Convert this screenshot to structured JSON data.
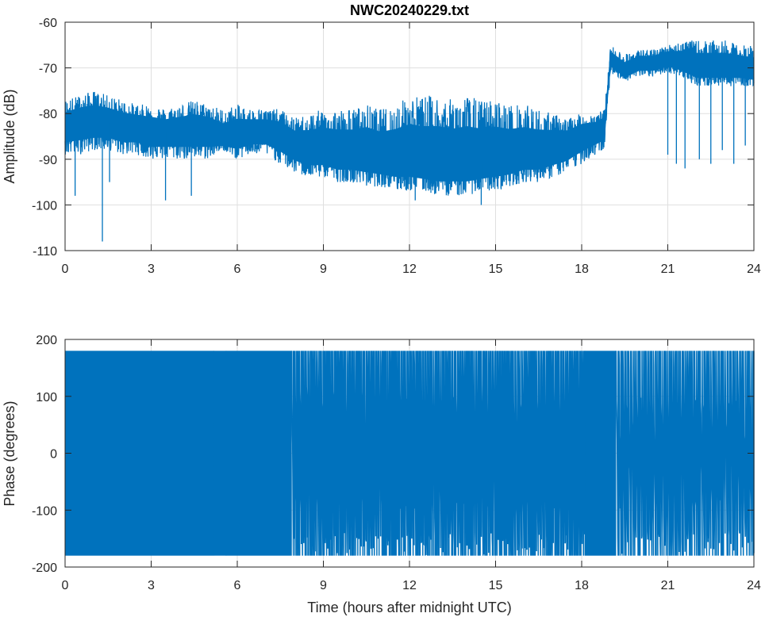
{
  "title": "NWC20240229.txt",
  "colors": {
    "series": "#0072BD",
    "grid": "#dfdfdf",
    "axis": "#262626",
    "background": "#ffffff"
  },
  "chart_data": [
    {
      "type": "line",
      "title": "NWC20240229.txt",
      "xlabel": "",
      "ylabel": "Amplitude (dB)",
      "xlim": [
        0,
        24
      ],
      "ylim": [
        -110,
        -60
      ],
      "xticks": [
        "0",
        "3",
        "6",
        "9",
        "12",
        "15",
        "18",
        "21",
        "24"
      ],
      "yticks": [
        "-60",
        "-70",
        "-80",
        "-90",
        "-100",
        "-110"
      ],
      "grid": true,
      "series": [
        {
          "x": [
            0,
            0.5,
            1,
            1.5,
            2,
            2.5,
            3,
            3.5,
            4,
            4.5,
            5,
            5.5,
            6,
            6.5,
            7,
            7.5,
            8,
            8.5,
            9,
            9.5,
            10,
            10.5,
            11,
            11.5,
            12,
            12.5,
            13,
            13.5,
            14,
            14.5,
            15,
            15.5,
            16,
            16.5,
            17,
            17.5,
            18,
            18.5,
            18.8,
            19,
            19.5,
            20,
            20.5,
            21,
            21.5,
            22,
            22.5,
            23,
            23.5,
            24
          ],
          "upper": [
            -77,
            -76,
            -75,
            -76,
            -77,
            -78,
            -78,
            -79,
            -78,
            -77,
            -78,
            -79,
            -78,
            -79,
            -79,
            -79,
            -81,
            -80,
            -79,
            -79,
            -79,
            -78,
            -79,
            -78,
            -76,
            -76,
            -76,
            -77,
            -76,
            -77,
            -77,
            -78,
            -78,
            -79,
            -80,
            -81,
            -80,
            -80,
            -79,
            -65,
            -67,
            -66,
            -66,
            -65,
            -64,
            -64,
            -64,
            -64,
            -65,
            -65
          ],
          "center": [
            -83,
            -82,
            -82,
            -82,
            -83,
            -83,
            -84,
            -84,
            -84,
            -84,
            -84,
            -86,
            -85,
            -84,
            -84,
            -85,
            -87,
            -88,
            -88,
            -89,
            -89,
            -89,
            -90,
            -90,
            -90,
            -91,
            -91,
            -91,
            -91,
            -91,
            -90,
            -90,
            -89,
            -89,
            -88,
            -87,
            -85,
            -84,
            -83,
            -68,
            -71,
            -69,
            -69,
            -68,
            -69,
            -70,
            -70,
            -70,
            -70,
            -71
          ],
          "lower": [
            -89,
            -89,
            -88,
            -88,
            -89,
            -89,
            -90,
            -90,
            -90,
            -90,
            -90,
            -88,
            -90,
            -89,
            -89,
            -91,
            -93,
            -94,
            -94,
            -95,
            -95,
            -96,
            -96,
            -97,
            -97,
            -97,
            -98,
            -98,
            -98,
            -97,
            -97,
            -96,
            -95,
            -95,
            -94,
            -93,
            -91,
            -89,
            -88,
            -71,
            -73,
            -72,
            -72,
            -71,
            -72,
            -74,
            -74,
            -74,
            -74,
            -74
          ],
          "spikes": [
            {
              "x": 0.35,
              "y": -98
            },
            {
              "x": 1.3,
              "y": -108
            },
            {
              "x": 1.55,
              "y": -95
            },
            {
              "x": 3.5,
              "y": -99
            },
            {
              "x": 4.4,
              "y": -98
            },
            {
              "x": 12.2,
              "y": -99
            },
            {
              "x": 14.5,
              "y": -100
            },
            {
              "x": 21.0,
              "y": -89
            },
            {
              "x": 21.3,
              "y": -91
            },
            {
              "x": 21.6,
              "y": -92
            },
            {
              "x": 22.1,
              "y": -90
            },
            {
              "x": 22.5,
              "y": -91
            },
            {
              "x": 22.9,
              "y": -88
            },
            {
              "x": 23.3,
              "y": -91
            },
            {
              "x": 23.7,
              "y": -87
            }
          ]
        }
      ]
    },
    {
      "type": "line",
      "title": "",
      "xlabel": "Time (hours after midnight UTC)",
      "ylabel": "Phase (degrees)",
      "xlim": [
        0,
        24
      ],
      "ylim": [
        -200,
        200
      ],
      "xticks": [
        "0",
        "3",
        "6",
        "9",
        "12",
        "15",
        "18",
        "21",
        "24"
      ],
      "yticks": [
        "200",
        "100",
        "0",
        "-100",
        "-200"
      ],
      "grid": true,
      "series": [
        {
          "wrap_range": [
            -180,
            180
          ],
          "solid_bands": [
            [
              0,
              5.2
            ],
            [
              5.6,
              7.9
            ],
            [
              18.1,
              19.2
            ]
          ],
          "sparse_segments": [
            {
              "from": 5.2,
              "to": 5.6,
              "wraps_per_hour": 30
            },
            {
              "from": 7.9,
              "to": 18.1,
              "wraps_per_hour": 12
            },
            {
              "from": 19.2,
              "to": 24,
              "wraps_per_hour": 10
            }
          ]
        }
      ]
    }
  ]
}
